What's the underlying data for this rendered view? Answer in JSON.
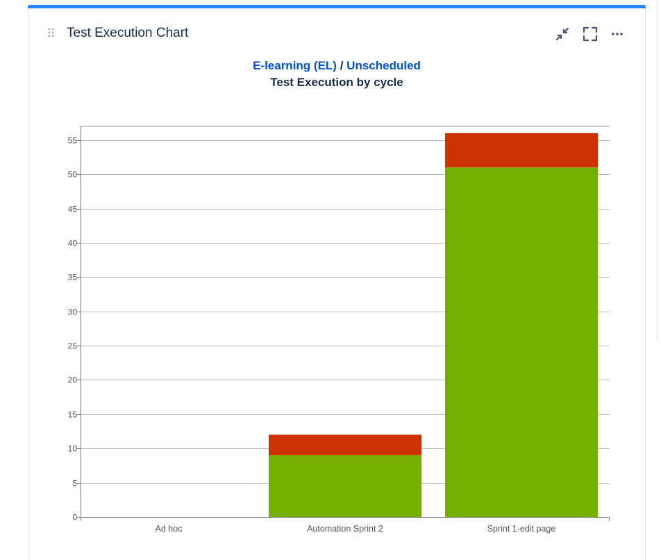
{
  "panel": {
    "title": "Test Execution Chart",
    "icons": {
      "drag": "drag-handle-icon",
      "minimize": "minimize-icon",
      "fullscreen": "fullscreen-icon",
      "more": "more-icon"
    },
    "accent_color": "#2684ff"
  },
  "header": {
    "project_link": "E-learning (EL)",
    "separator": "/",
    "version_link": "Unscheduled"
  },
  "chart_data": {
    "type": "bar",
    "stacked": true,
    "title": "Test Execution by cycle",
    "xlabel": "",
    "ylabel": "",
    "ylim": [
      0,
      57
    ],
    "yticks": [
      0,
      5,
      10,
      15,
      20,
      25,
      30,
      35,
      40,
      45,
      50,
      55
    ],
    "grid": true,
    "categories": [
      "Ad hoc",
      "Automation Sprint 2",
      "Sprint 1-edit page"
    ],
    "series": [
      {
        "values": [
          0,
          9,
          51
        ],
        "color": "#75b000"
      },
      {
        "values": [
          0,
          3,
          5
        ],
        "color": "#cc3300"
      }
    ]
  }
}
